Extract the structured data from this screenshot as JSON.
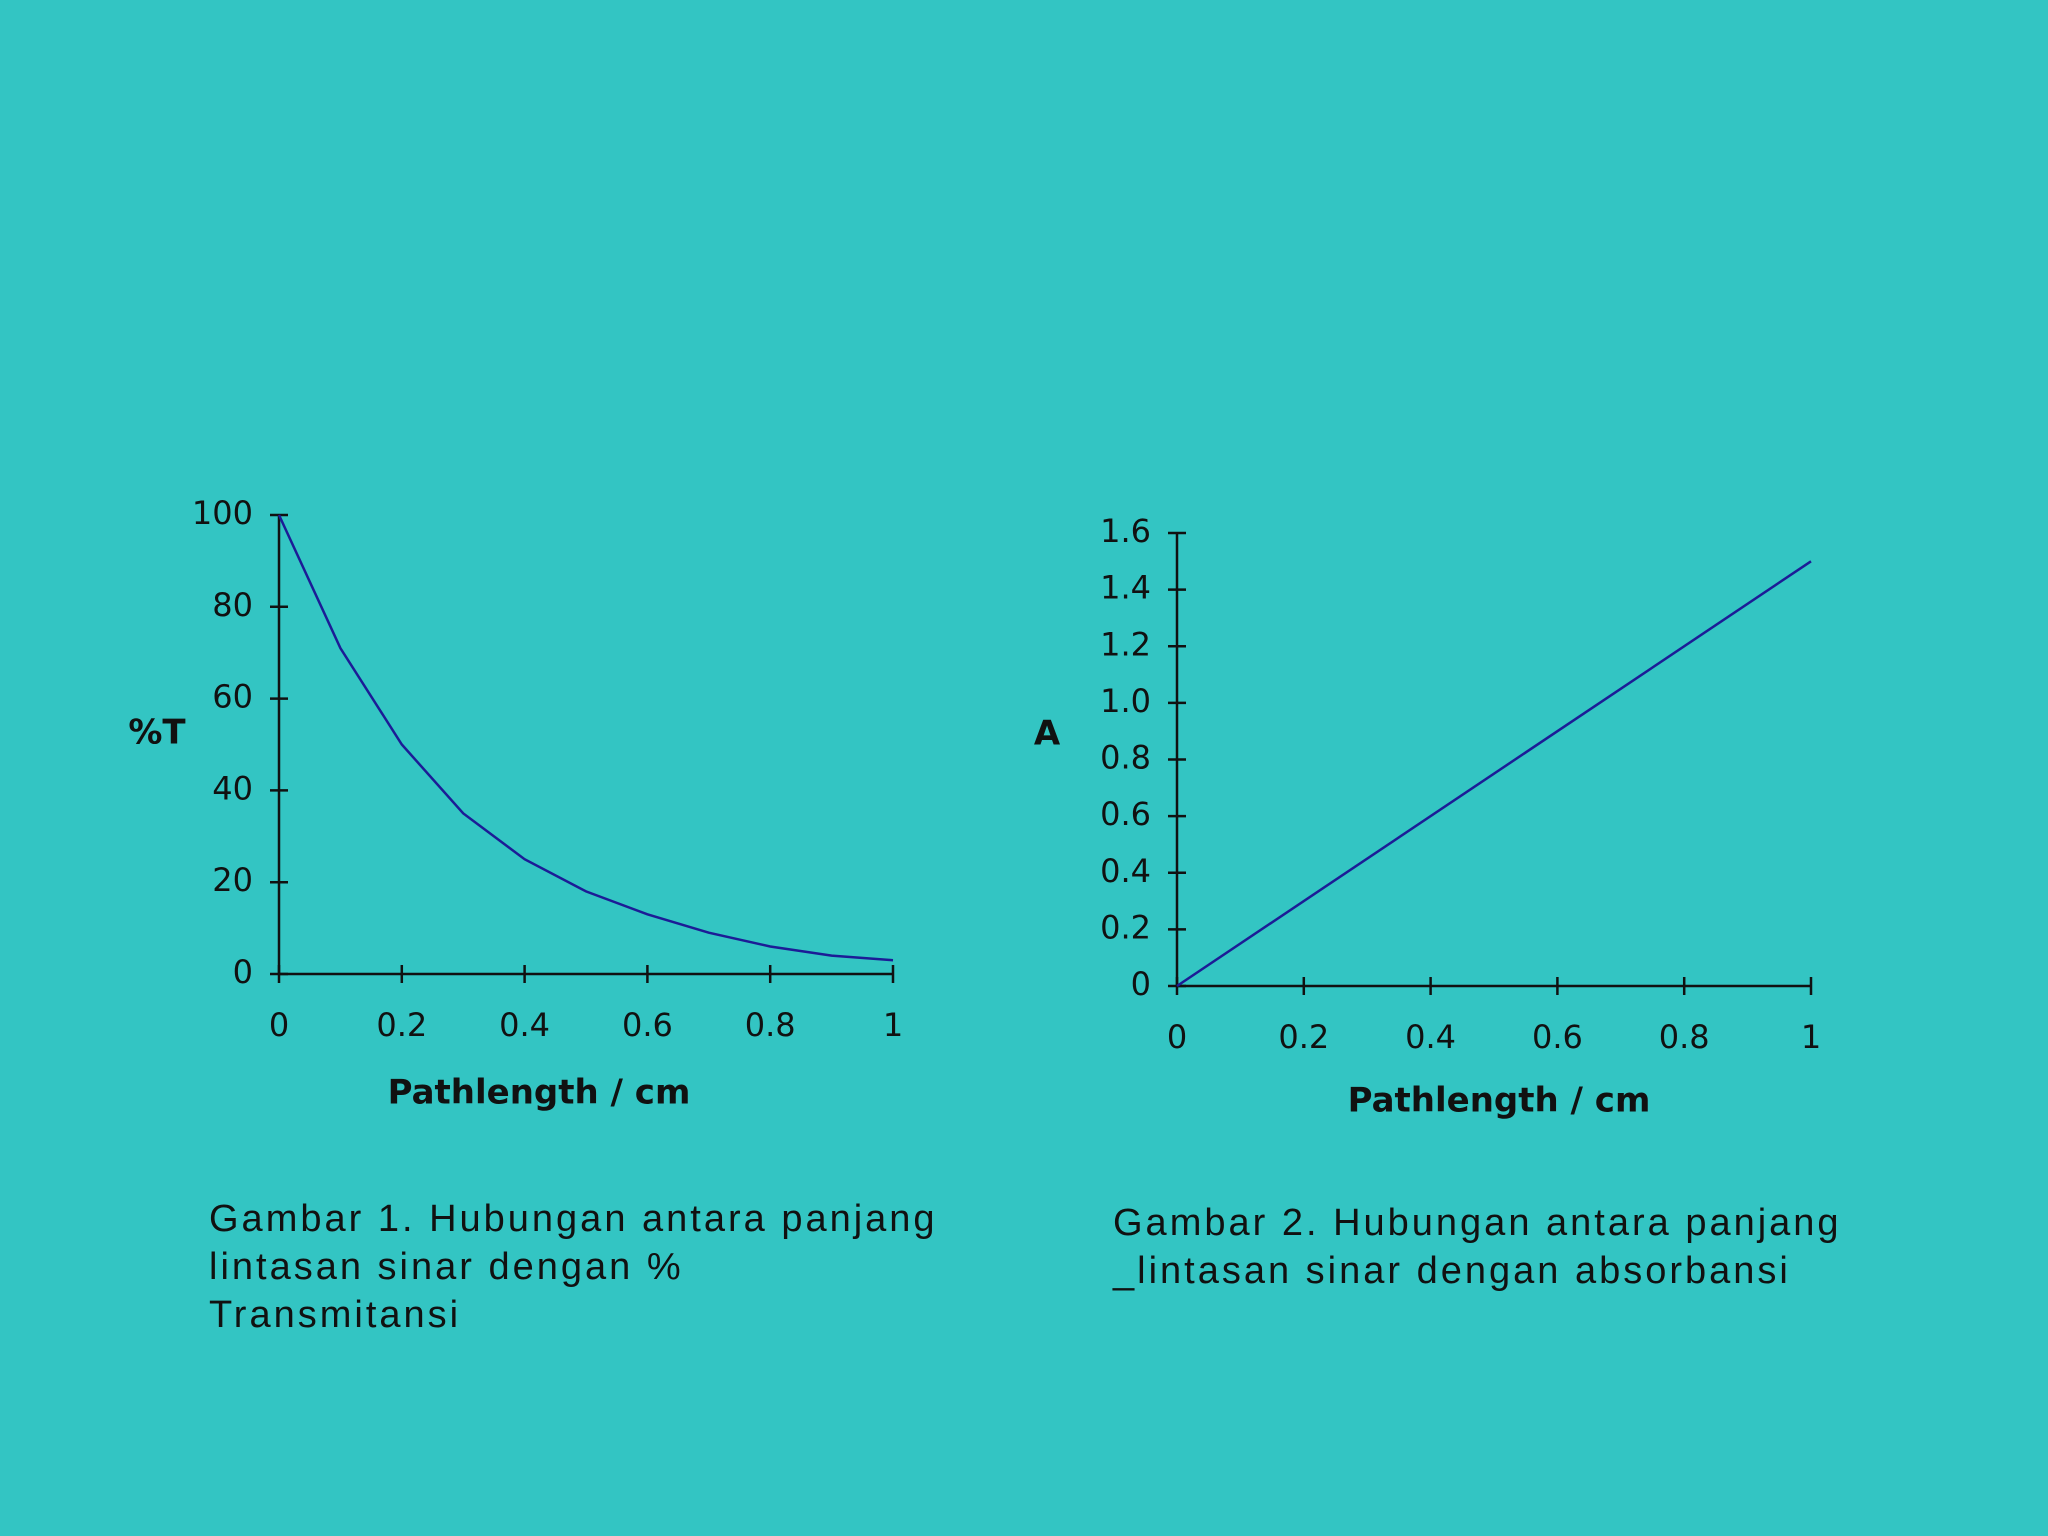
{
  "chart_data": [
    {
      "type": "line",
      "xlabel": "Pathlength / cm",
      "ylabel": "%T",
      "x": [
        0,
        0.1,
        0.2,
        0.3,
        0.4,
        0.5,
        0.6,
        0.7,
        0.8,
        0.9,
        1
      ],
      "values": [
        100,
        71,
        50,
        35,
        25,
        18,
        13,
        9,
        6,
        4,
        3
      ],
      "color": "#1c1c96",
      "xlim": [
        0,
        1
      ],
      "xticks": [
        0,
        0.2,
        0.4,
        0.6,
        0.8,
        1
      ],
      "ylim": [
        0,
        100
      ],
      "yticks": [
        0,
        20,
        40,
        60,
        80,
        100
      ],
      "grid": false,
      "caption": [
        "Gambar 1. Hubungan antara panjang",
        "lintasan sinar dengan %",
        "Transmitansi"
      ]
    },
    {
      "type": "line",
      "xlabel": "Pathlength / cm",
      "ylabel": "A",
      "x": [
        0,
        1
      ],
      "values": [
        0,
        1.5
      ],
      "color": "#1c1c96",
      "xlim": [
        0,
        1
      ],
      "xticks": [
        0,
        0.2,
        0.4,
        0.6,
        0.8,
        1
      ],
      "ylim": [
        0,
        1.6
      ],
      "yticks": [
        0,
        0.2,
        0.4,
        0.6,
        0.8,
        {
          "value": 1,
          "label": "1.0"
        },
        1.2,
        1.4,
        1.6
      ],
      "grid": false,
      "caption": [
        "Gambar 2. Hubungan antara panjang",
        "_lintasan  sinar dengan absorbansi"
      ]
    }
  ]
}
